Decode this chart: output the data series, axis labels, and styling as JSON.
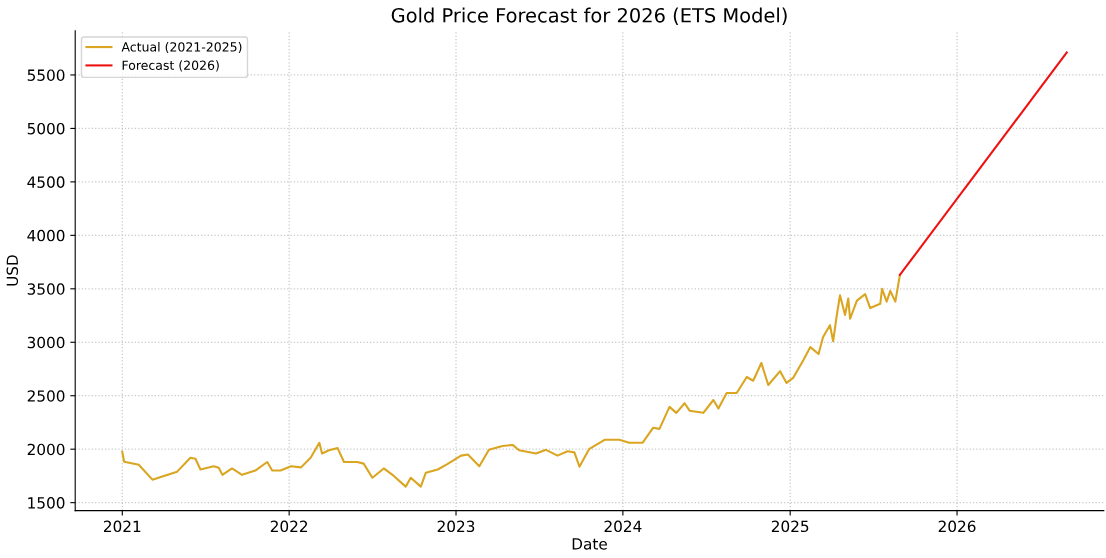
{
  "chart_data": {
    "type": "line",
    "title": "Gold Price Forecast for 2026 (ETS Model)",
    "xlabel": "Date",
    "ylabel": "USD",
    "xlim": [
      "2020-09-20",
      "2026-11-18"
    ],
    "xticks": [
      "2021",
      "2022",
      "2023",
      "2024",
      "2025",
      "2026"
    ],
    "ylim": [
      1426,
      5914
    ],
    "yticks": [
      1500,
      2000,
      2500,
      3000,
      3500,
      4000,
      4500,
      5000,
      5500
    ],
    "grid": true,
    "legend": "top left",
    "line_style": "solid",
    "series": [
      {
        "name": "Actual (2021-2025)",
        "color": "#daa520",
        "x": [
          "2021-01-01",
          "2021-01-05",
          "2021-02-06",
          "2021-03-08",
          "2021-03-26",
          "2021-05-01",
          "2021-05-30",
          "2021-06-10",
          "2021-06-21",
          "2021-07-20",
          "2021-07-31",
          "2021-08-08",
          "2021-08-29",
          "2021-09-20",
          "2021-10-19",
          "2021-11-14",
          "2021-11-25",
          "2021-12-13",
          "2022-01-05",
          "2022-01-27",
          "2022-02-17",
          "2022-03-08",
          "2022-03-14",
          "2022-03-29",
          "2022-04-17",
          "2022-05-01",
          "2022-05-30",
          "2022-06-13",
          "2022-07-02",
          "2022-07-27",
          "2022-08-18",
          "2022-09-13",
          "2022-09-24",
          "2022-10-16",
          "2022-10-27",
          "2022-11-22",
          "2022-12-13",
          "2023-01-12",
          "2023-01-27",
          "2023-02-21",
          "2023-03-14",
          "2023-04-13",
          "2023-05-05",
          "2023-05-19",
          "2023-06-25",
          "2023-07-17",
          "2023-08-11",
          "2023-09-02",
          "2023-09-17",
          "2023-09-28",
          "2023-10-19",
          "2023-11-22",
          "2023-12-24",
          "2024-01-15",
          "2024-02-13",
          "2024-03-07",
          "2024-03-21",
          "2024-04-12",
          "2024-04-27",
          "2024-05-15",
          "2024-05-26",
          "2024-06-25",
          "2024-07-17",
          "2024-07-28",
          "2024-08-15",
          "2024-09-06",
          "2024-09-28",
          "2024-10-12",
          "2024-10-30",
          "2024-11-14",
          "2024-12-10",
          "2024-12-24",
          "2025-01-08",
          "2025-01-30",
          "2025-02-14",
          "2025-03-04",
          "2025-03-14",
          "2025-03-29",
          "2025-04-05",
          "2025-04-13",
          "2025-04-20",
          "2025-05-01",
          "2025-05-08",
          "2025-05-12",
          "2025-05-27",
          "2025-06-14",
          "2025-06-25",
          "2025-07-17",
          "2025-07-21",
          "2025-07-31",
          "2025-08-08",
          "2025-08-19",
          "2025-08-29"
        ],
        "values": [
          1975,
          1882,
          1855,
          1715,
          1740,
          1790,
          1920,
          1910,
          1810,
          1840,
          1827,
          1760,
          1820,
          1760,
          1800,
          1880,
          1800,
          1800,
          1840,
          1830,
          1920,
          2060,
          1960,
          1990,
          2010,
          1880,
          1880,
          1865,
          1733,
          1820,
          1750,
          1650,
          1733,
          1650,
          1780,
          1810,
          1860,
          1940,
          1950,
          1840,
          1994,
          2030,
          2040,
          1990,
          1960,
          1994,
          1940,
          1980,
          1970,
          1836,
          2000,
          2088,
          2088,
          2060,
          2060,
          2200,
          2190,
          2396,
          2340,
          2430,
          2360,
          2340,
          2460,
          2380,
          2525,
          2525,
          2675,
          2640,
          2806,
          2600,
          2730,
          2620,
          2670,
          2834,
          2955,
          2890,
          3050,
          3160,
          3010,
          3255,
          3440,
          3255,
          3410,
          3220,
          3390,
          3450,
          3320,
          3360,
          3500,
          3380,
          3480,
          3380,
          3630
        ]
      },
      {
        "name": "Forecast (2026)",
        "color": "#ee1111",
        "x": [
          "2025-08-29",
          "2026-08-29"
        ],
        "values": [
          3630,
          5710
        ]
      }
    ]
  }
}
